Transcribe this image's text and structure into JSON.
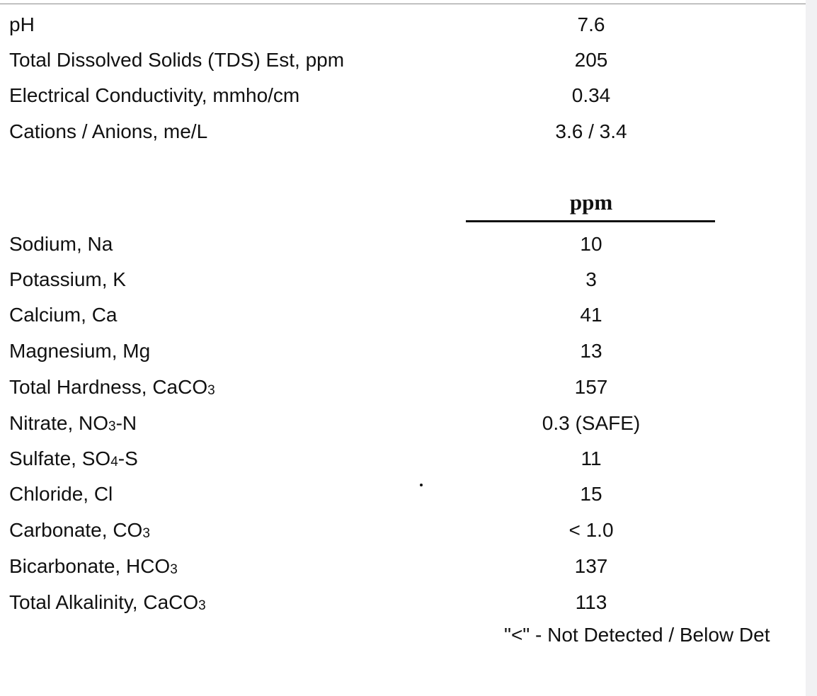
{
  "summary": [
    {
      "label": "pH",
      "value": "7.6"
    },
    {
      "label": "Total Dissolved Solids (TDS) Est, ppm",
      "value": "205"
    },
    {
      "label": "Electrical Conductivity, mmho/cm",
      "value": "0.34"
    },
    {
      "label": "Cations / Anions, me/L",
      "value": "3.6 /  3.4"
    }
  ],
  "unit_header": "ppm",
  "analytes": [
    {
      "label": "Sodium, Na",
      "value": "10"
    },
    {
      "label": "Potassium, K",
      "value": "3"
    },
    {
      "label": "Calcium, Ca",
      "value": "41"
    },
    {
      "label": "Magnesium, Mg",
      "value": "13"
    },
    {
      "label_prefix": "Total Hardness, CaCO",
      "label_sub": "3",
      "label_suffix": "",
      "value": "157"
    },
    {
      "label_prefix": "Nitrate, NO",
      "label_sub": "3",
      "label_suffix": "-N",
      "value": "0.3 (SAFE)"
    },
    {
      "label_prefix": "Sulfate, SO",
      "label_sub": "4",
      "label_suffix": "-S",
      "value": "11"
    },
    {
      "label": "Chloride, Cl",
      "value": "15"
    },
    {
      "label_prefix": "Carbonate, CO",
      "label_sub": "3",
      "label_suffix": "",
      "value": "< 1.0"
    },
    {
      "label_prefix": "Bicarbonate, HCO",
      "label_sub": "3",
      "label_suffix": "",
      "value": "137"
    },
    {
      "label_prefix": "Total Alkalinity, CaCO",
      "label_sub": "3",
      "label_suffix": "",
      "value": "113"
    }
  ],
  "footnote": "\"<\" - Not Detected / Below Det"
}
